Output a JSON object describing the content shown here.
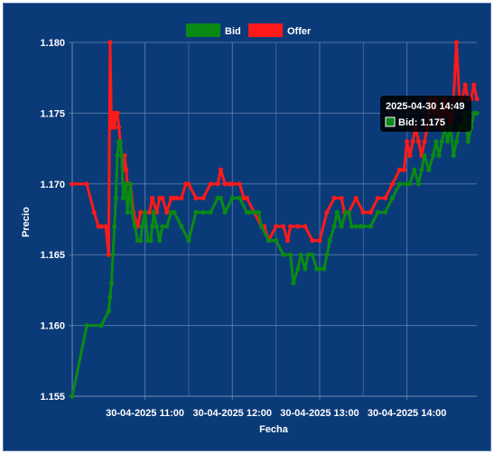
{
  "chart_data": {
    "type": "line",
    "xlabel": "Fecha",
    "ylabel": "Precio",
    "ylim": [
      1.155,
      1.18
    ],
    "y_ticks": [
      "1.155",
      "1.160",
      "1.165",
      "1.170",
      "1.175",
      "1.180"
    ],
    "x_ticks": [
      "30-04-2025 11:00",
      "30-04-2025 12:00",
      "30-04-2025 13:00",
      "30-04-2025 14:00"
    ],
    "xlim": [
      "2025-04-30 10:10",
      "2025-04-30 14:48"
    ],
    "legend_position": "top",
    "grid": true,
    "colors": {
      "background": "#0b3a78",
      "grid": "#6f8fb8",
      "bid": "#0a8a14",
      "offer": "#ff1a1a"
    },
    "series": [
      {
        "name": "Bid",
        "x": [
          "10:10",
          "10:20",
          "10:30",
          "10:35",
          "10:36",
          "10:37",
          "10:38",
          "10:39",
          "10:40",
          "10:41",
          "10:42",
          "10:43",
          "10:44",
          "10:45",
          "10:46",
          "10:47",
          "10:48",
          "10:49",
          "10:50",
          "10:51",
          "10:53",
          "10:55",
          "10:57",
          "10:58",
          "11:00",
          "11:02",
          "11:04",
          "11:05",
          "11:06",
          "11:08",
          "11:10",
          "11:12",
          "11:15",
          "11:18",
          "11:20",
          "11:25",
          "11:30",
          "11:35",
          "11:40",
          "11:45",
          "11:50",
          "11:52",
          "11:55",
          "12:00",
          "12:05",
          "12:10",
          "12:12",
          "12:15",
          "12:18",
          "12:20",
          "12:25",
          "12:30",
          "12:35",
          "12:40",
          "12:42",
          "12:45",
          "12:47",
          "12:50",
          "12:52",
          "12:55",
          "12:58",
          "13:00",
          "13:03",
          "13:05",
          "13:07",
          "13:10",
          "13:12",
          "13:15",
          "13:18",
          "13:20",
          "13:22",
          "13:25",
          "13:28",
          "13:30",
          "13:35",
          "13:40",
          "13:45",
          "13:50",
          "13:55",
          "14:00",
          "14:02",
          "14:05",
          "14:08",
          "14:10",
          "14:12",
          "14:15",
          "14:18",
          "14:20",
          "14:22",
          "14:24",
          "14:26",
          "14:28",
          "14:30",
          "14:32",
          "14:34",
          "14:36",
          "14:38",
          "14:40",
          "14:42",
          "14:44",
          "14:46",
          "14:48"
        ],
        "values": [
          1.155,
          1.16,
          1.16,
          1.161,
          1.162,
          1.163,
          1.165,
          1.167,
          1.169,
          1.172,
          1.173,
          1.173,
          1.172,
          1.169,
          1.17,
          1.17,
          1.168,
          1.169,
          1.17,
          1.168,
          1.167,
          1.166,
          1.166,
          1.167,
          1.168,
          1.166,
          1.166,
          1.167,
          1.168,
          1.167,
          1.166,
          1.167,
          1.167,
          1.168,
          1.168,
          1.167,
          1.166,
          1.168,
          1.168,
          1.168,
          1.169,
          1.169,
          1.168,
          1.169,
          1.169,
          1.168,
          1.168,
          1.168,
          1.168,
          1.167,
          1.166,
          1.166,
          1.165,
          1.165,
          1.163,
          1.164,
          1.165,
          1.164,
          1.165,
          1.165,
          1.164,
          1.164,
          1.164,
          1.165,
          1.166,
          1.167,
          1.168,
          1.167,
          1.168,
          1.168,
          1.167,
          1.167,
          1.167,
          1.167,
          1.167,
          1.168,
          1.168,
          1.169,
          1.17,
          1.17,
          1.17,
          1.171,
          1.17,
          1.171,
          1.172,
          1.171,
          1.172,
          1.173,
          1.172,
          1.173,
          1.174,
          1.173,
          1.174,
          1.172,
          1.173,
          1.174,
          1.174,
          1.175,
          1.173,
          1.174,
          1.175,
          1.175
        ]
      },
      {
        "name": "Offer",
        "x": [
          "10:10",
          "10:20",
          "10:25",
          "10:28",
          "10:30",
          "10:33",
          "10:35",
          "10:36",
          "10:37",
          "10:38",
          "10:39",
          "10:40",
          "10:41",
          "10:42",
          "10:43",
          "10:44",
          "10:45",
          "10:46",
          "10:47",
          "10:48",
          "10:50",
          "10:52",
          "10:55",
          "10:57",
          "11:00",
          "11:03",
          "11:05",
          "11:08",
          "11:10",
          "11:12",
          "11:15",
          "11:18",
          "11:20",
          "11:22",
          "11:25",
          "11:28",
          "11:30",
          "11:35",
          "11:40",
          "11:45",
          "11:50",
          "11:52",
          "11:55",
          "11:58",
          "12:00",
          "12:05",
          "12:08",
          "12:10",
          "12:15",
          "12:20",
          "12:22",
          "12:25",
          "12:30",
          "12:35",
          "12:38",
          "12:40",
          "12:45",
          "12:50",
          "12:55",
          "13:00",
          "13:05",
          "13:10",
          "13:15",
          "13:17",
          "13:20",
          "13:25",
          "13:30",
          "13:35",
          "13:40",
          "13:45",
          "13:50",
          "13:55",
          "13:58",
          "14:00",
          "14:02",
          "14:04",
          "14:06",
          "14:08",
          "14:10",
          "14:12",
          "14:14",
          "14:16",
          "14:18",
          "14:20",
          "14:22",
          "14:24",
          "14:26",
          "14:28",
          "14:30",
          "14:32",
          "14:34",
          "14:36",
          "14:38",
          "14:40",
          "14:42",
          "14:44",
          "14:46",
          "14:48"
        ],
        "values": [
          1.17,
          1.17,
          1.168,
          1.167,
          1.167,
          1.167,
          1.165,
          1.18,
          1.174,
          1.175,
          1.174,
          1.175,
          1.175,
          1.174,
          1.173,
          1.172,
          1.171,
          1.172,
          1.171,
          1.17,
          1.17,
          1.168,
          1.167,
          1.168,
          1.168,
          1.168,
          1.169,
          1.168,
          1.169,
          1.169,
          1.168,
          1.169,
          1.169,
          1.169,
          1.169,
          1.17,
          1.17,
          1.169,
          1.169,
          1.17,
          1.17,
          1.171,
          1.17,
          1.17,
          1.17,
          1.17,
          1.169,
          1.169,
          1.168,
          1.167,
          1.167,
          1.166,
          1.167,
          1.167,
          1.166,
          1.167,
          1.167,
          1.167,
          1.166,
          1.166,
          1.168,
          1.169,
          1.169,
          1.168,
          1.168,
          1.169,
          1.168,
          1.168,
          1.169,
          1.169,
          1.17,
          1.171,
          1.171,
          1.173,
          1.172,
          1.173,
          1.174,
          1.173,
          1.172,
          1.173,
          1.174,
          1.176,
          1.175,
          1.176,
          1.175,
          1.174,
          1.176,
          1.175,
          1.174,
          1.176,
          1.18,
          1.176,
          1.176,
          1.177,
          1.176,
          1.176,
          1.177,
          1.176
        ]
      }
    ],
    "tooltip": {
      "title": "2025-04-30 14:49",
      "series": "Bid",
      "value": "1.175"
    }
  }
}
